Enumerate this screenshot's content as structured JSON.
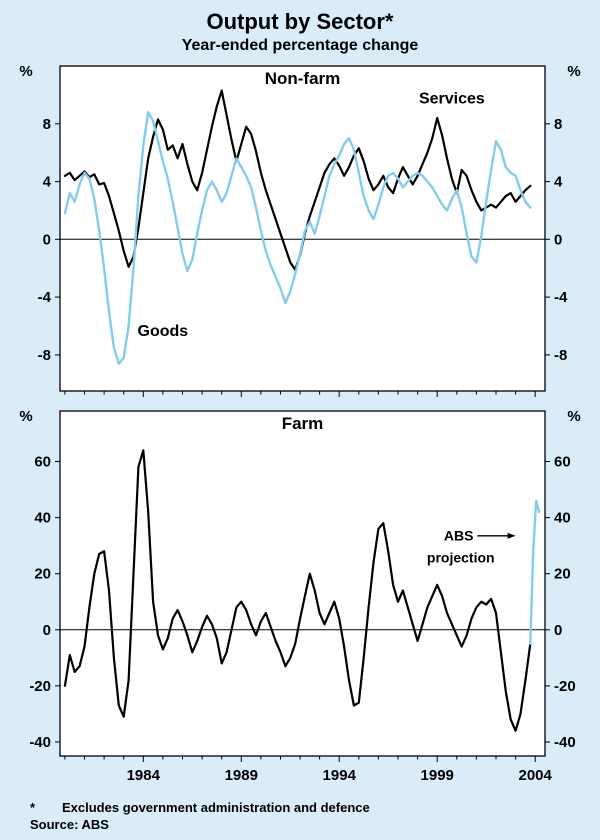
{
  "page": {
    "title": "Output by Sector*",
    "subtitle": "Year-ended percentage change",
    "footnote_star": "*",
    "footnote_text": "Excludes government administration and defence",
    "source": "Source: ABS",
    "colors": {
      "background": "#d9ecf8",
      "panel_bg": "#ffffff",
      "black": "#000000",
      "blue": "#85cbee"
    }
  },
  "chart_data": [
    {
      "type": "line",
      "panel_title": "Non-farm",
      "unit": "%",
      "xlim": [
        1979.75,
        2004.5
      ],
      "ylim": [
        -10.5,
        12
      ],
      "yticks": [
        8,
        4,
        0,
        -4,
        -8
      ],
      "xticks_major": [
        1984,
        1989,
        1994,
        1999,
        2004
      ],
      "xtick_labels": [],
      "series": [
        {
          "name": "Services",
          "color": "black",
          "width": 2.2,
          "x0": 1980,
          "dx": 0.25,
          "values": [
            4.4,
            4.6,
            4.1,
            4.4,
            4.7,
            4.3,
            4.5,
            3.8,
            3.9,
            3.0,
            1.8,
            0.6,
            -0.8,
            -1.9,
            -1.2,
            0.8,
            3.2,
            5.6,
            7.1,
            8.3,
            7.6,
            6.2,
            6.5,
            5.6,
            6.6,
            5.2,
            4.0,
            3.4,
            4.6,
            6.2,
            7.8,
            9.2,
            10.3,
            8.6,
            6.9,
            5.4,
            6.6,
            7.8,
            7.3,
            6.1,
            4.6,
            3.4,
            2.4,
            1.4,
            0.4,
            -0.6,
            -1.6,
            -2.1,
            -1.1,
            0.4,
            1.6,
            2.6,
            3.6,
            4.6,
            5.2,
            5.6,
            5.1,
            4.4,
            5.0,
            5.8,
            6.3,
            5.4,
            4.2,
            3.4,
            3.8,
            4.4,
            3.6,
            3.2,
            4.2,
            5.0,
            4.4,
            3.8,
            4.4,
            5.2,
            6.0,
            7.0,
            8.4,
            7.2,
            5.6,
            4.2,
            3.2,
            4.8,
            4.4,
            3.4,
            2.6,
            2.0,
            2.2,
            2.4,
            2.2,
            2.6,
            3.0,
            3.2,
            2.6,
            3.0,
            3.4,
            3.7
          ]
        },
        {
          "name": "Goods",
          "color": "blue",
          "width": 2.4,
          "x0": 1980,
          "dx": 0.25,
          "values": [
            1.8,
            3.2,
            2.6,
            3.8,
            4.6,
            4.2,
            2.8,
            0.6,
            -2.0,
            -5.0,
            -7.5,
            -8.6,
            -8.2,
            -6.0,
            -2.0,
            3.0,
            6.5,
            8.8,
            8.2,
            6.8,
            5.4,
            4.2,
            2.6,
            0.8,
            -1.0,
            -2.2,
            -1.4,
            0.4,
            2.0,
            3.4,
            4.0,
            3.4,
            2.6,
            3.2,
            4.4,
            5.6,
            5.0,
            4.4,
            3.6,
            2.2,
            0.6,
            -0.8,
            -1.8,
            -2.6,
            -3.4,
            -4.4,
            -3.6,
            -2.4,
            -1.0,
            0.6,
            1.2,
            0.4,
            1.6,
            3.0,
            4.4,
            5.2,
            5.8,
            6.6,
            7.0,
            6.2,
            4.6,
            3.0,
            2.0,
            1.4,
            2.4,
            3.6,
            4.4,
            4.6,
            4.2,
            3.6,
            4.0,
            4.4,
            4.6,
            4.4,
            4.0,
            3.6,
            3.0,
            2.4,
            2.0,
            2.8,
            3.4,
            2.2,
            0.4,
            -1.2,
            -1.6,
            0.2,
            2.6,
            4.8,
            6.8,
            6.2,
            5.0,
            4.6,
            4.4,
            3.4,
            2.6,
            2.2
          ]
        }
      ],
      "labels": [
        {
          "text": "Services",
          "x": 1999.75,
          "y": 9.4,
          "size": 16,
          "anchor": "middle"
        },
        {
          "text": "Goods",
          "x": 1985.0,
          "y": -6.7,
          "size": 16,
          "anchor": "middle"
        }
      ]
    },
    {
      "type": "line",
      "panel_title": "Farm",
      "unit": "%",
      "xlim": [
        1979.75,
        2004.5
      ],
      "ylim": [
        -45,
        78
      ],
      "yticks": [
        60,
        40,
        20,
        0,
        -20,
        -40
      ],
      "xticks_major": [
        1984,
        1989,
        1994,
        1999,
        2004
      ],
      "xtick_labels": [
        "1984",
        "1989",
        "1994",
        "1999",
        "2004"
      ],
      "series": [
        {
          "name": "Farm",
          "color": "black",
          "width": 2.2,
          "x0": 1980,
          "dx": 0.25,
          "values": [
            -20,
            -9,
            -15,
            -13,
            -6,
            8,
            20,
            27,
            28,
            14,
            -10,
            -27,
            -31,
            -18,
            20,
            58,
            64,
            42,
            10,
            -2,
            -7,
            -3,
            4,
            7,
            3,
            -2,
            -8,
            -4,
            1,
            5,
            2,
            -3,
            -12,
            -8,
            0,
            8,
            10,
            7,
            2,
            -2,
            3,
            6,
            1,
            -4,
            -8,
            -13,
            -10,
            -5,
            4,
            12,
            20,
            14,
            6,
            2,
            6,
            10,
            4,
            -6,
            -18,
            -27,
            -26,
            -10,
            8,
            24,
            36,
            38,
            28,
            16,
            10,
            14,
            8,
            2,
            -4,
            2,
            8,
            12,
            16,
            12,
            6,
            2,
            -2,
            -6,
            -2,
            4,
            8,
            10,
            9,
            11,
            6,
            -8,
            -22,
            -32,
            -36,
            -30,
            -18,
            -5
          ]
        },
        {
          "name": "ABS projection",
          "color": "blue",
          "width": 2.4,
          "points": [
            [
              2003.75,
              -5
            ],
            [
              2003.9,
              28
            ],
            [
              2004.05,
              46
            ],
            [
              2004.2,
              42
            ]
          ]
        }
      ],
      "labels": [
        {
          "text": "ABS",
          "x": 2000.85,
          "y": 31.8,
          "size": 14,
          "anchor": "end"
        },
        {
          "text": "projection",
          "x": 2000.2,
          "y": 24.0,
          "size": 14,
          "anchor": "middle"
        }
      ],
      "arrows": [
        {
          "from": [
            2001.05,
            33.5
          ],
          "to": [
            2003.0,
            33.5
          ]
        }
      ]
    }
  ]
}
